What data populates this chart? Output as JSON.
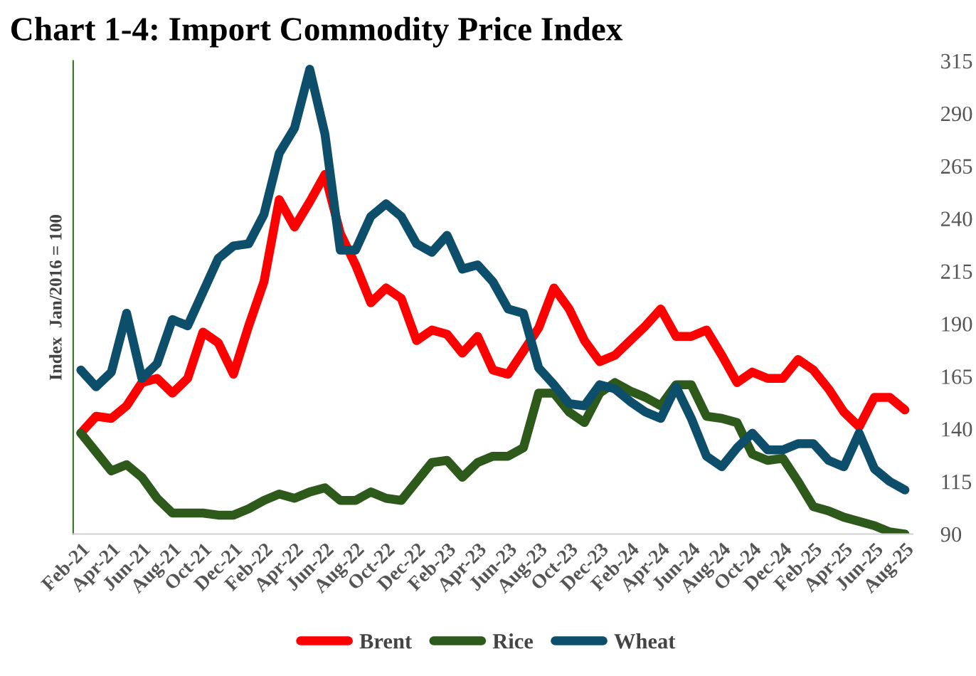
{
  "chart_data": {
    "type": "line",
    "title": "Chart 1-4: Import Commodity Price Index",
    "ylabel": "Index  Jan/2016 = 100",
    "categories": [
      "Feb-21",
      null,
      "Apr-21",
      null,
      "Jun-21",
      null,
      "Aug-21",
      null,
      "Oct-21",
      null,
      "Dec-21",
      null,
      "Feb-22",
      null,
      "Apr-22",
      null,
      "Jun-22",
      null,
      "Aug-22",
      null,
      "Oct-22",
      null,
      "Dec-22",
      null,
      "Feb-23",
      null,
      "Apr-23",
      null,
      "Jun-23",
      null,
      "Aug-23",
      null,
      "Oct-23",
      null,
      "Dec-23",
      null,
      "Feb-24",
      null,
      "Apr-24",
      null,
      "Jun-24",
      null,
      "Aug-24",
      null,
      "Oct-24",
      null,
      "Dec-24",
      null,
      "Feb-25",
      null,
      "Apr-25",
      null,
      "Jun-25",
      null,
      "Aug-25"
    ],
    "series": [
      {
        "name": "Brent",
        "color": "#ff0000",
        "values": [
          138,
          146,
          145,
          151,
          162,
          164,
          157,
          164,
          186,
          181,
          166,
          189,
          210,
          249,
          236,
          248,
          261,
          233,
          218,
          200,
          207,
          202,
          182,
          187,
          185,
          176,
          184,
          168,
          166,
          177,
          188,
          207,
          197,
          182,
          172,
          175,
          182,
          189,
          197,
          184,
          184,
          187,
          175,
          162,
          167,
          164,
          164,
          173,
          168,
          159,
          148,
          141,
          155,
          155,
          149
        ]
      },
      {
        "name": "Rice",
        "color": "#2d5a1b",
        "values": [
          138,
          129,
          120,
          123,
          117,
          107,
          100,
          100,
          100,
          99,
          99,
          102,
          106,
          109,
          107,
          110,
          112,
          106,
          106,
          110,
          107,
          106,
          115,
          124,
          125,
          117,
          124,
          127,
          127,
          131,
          157,
          157,
          148,
          143,
          157,
          162,
          158,
          155,
          151,
          161,
          161,
          146,
          145,
          143,
          128,
          125,
          126,
          115,
          103,
          101,
          98,
          96,
          94,
          91,
          90
        ]
      },
      {
        "name": "Wheat",
        "color": "#0d4f6b",
        "values": [
          168,
          160,
          167,
          195,
          164,
          171,
          192,
          189,
          205,
          221,
          227,
          228,
          242,
          271,
          283,
          311,
          280,
          225,
          225,
          241,
          247,
          241,
          228,
          224,
          232,
          216,
          218,
          210,
          197,
          195,
          169,
          161,
          152,
          151,
          161,
          159,
          153,
          148,
          145,
          160,
          145,
          127,
          122,
          131,
          138,
          130,
          130,
          133,
          133,
          125,
          122,
          138,
          121,
          115,
          111
        ]
      }
    ],
    "ylim": [
      90,
      315
    ],
    "yticks": [
      90,
      115,
      140,
      165,
      190,
      215,
      240,
      265,
      290,
      315
    ],
    "grid": false,
    "legend": "bottom",
    "marker": "none",
    "line_style": "solid"
  }
}
